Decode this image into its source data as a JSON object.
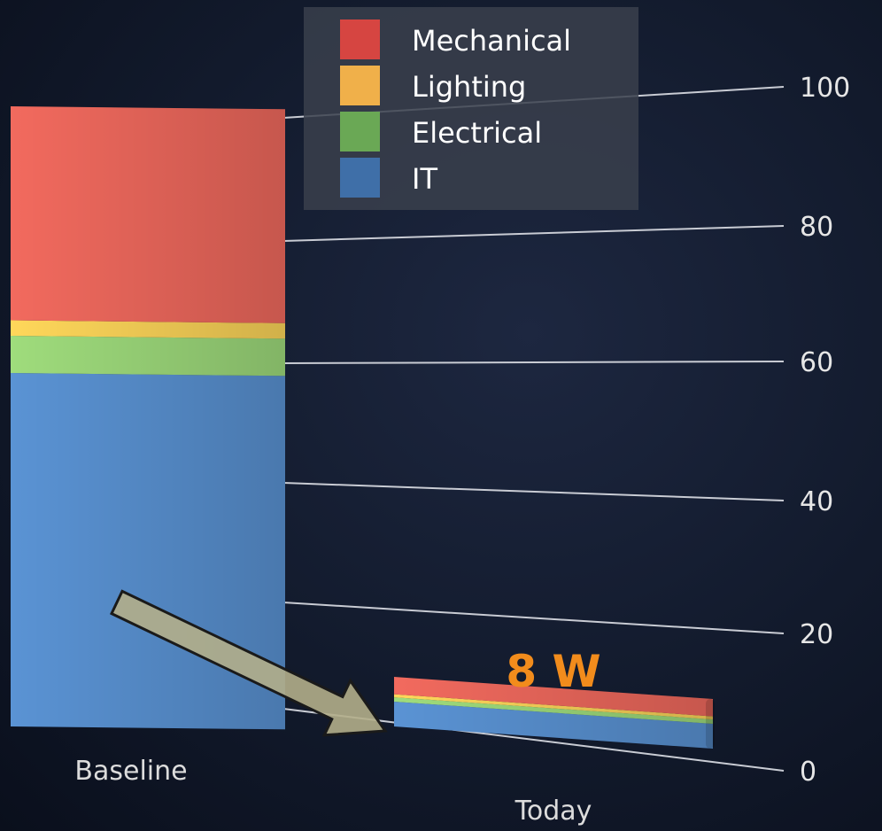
{
  "chart_data": {
    "type": "bar",
    "stacked": true,
    "categories": [
      "Baseline",
      "Today"
    ],
    "series": [
      {
        "name": "IT",
        "values": [
          57,
          4.0
        ],
        "color": "#5a93d4"
      },
      {
        "name": "Electrical",
        "values": [
          6,
          0.7
        ],
        "color": "#9fdc7c"
      },
      {
        "name": "Lighting",
        "values": [
          2.5,
          0.5
        ],
        "color": "#ffd75a"
      },
      {
        "name": "Mechanical",
        "values": [
          34.5,
          2.8
        ],
        "color": "#f26a5e"
      }
    ],
    "legend": {
      "placement": "top-center",
      "order": [
        "Mechanical",
        "Lighting",
        "Electrical",
        "IT"
      ],
      "swatch_colors": {
        "Mechanical": "#d64541",
        "Lighting": "#f0b04a",
        "Electrical": "#6aa855",
        "IT": "#3f6fa8"
      }
    },
    "yticks": [
      0,
      20,
      40,
      60,
      80,
      100
    ],
    "ylim": [
      0,
      100
    ],
    "grid": true,
    "annotation": {
      "text": "8 W",
      "color": "#f28c1c",
      "target": "Today"
    },
    "arrow": {
      "from": "Baseline",
      "to": "Today",
      "color": "#b3ae8a"
    }
  }
}
